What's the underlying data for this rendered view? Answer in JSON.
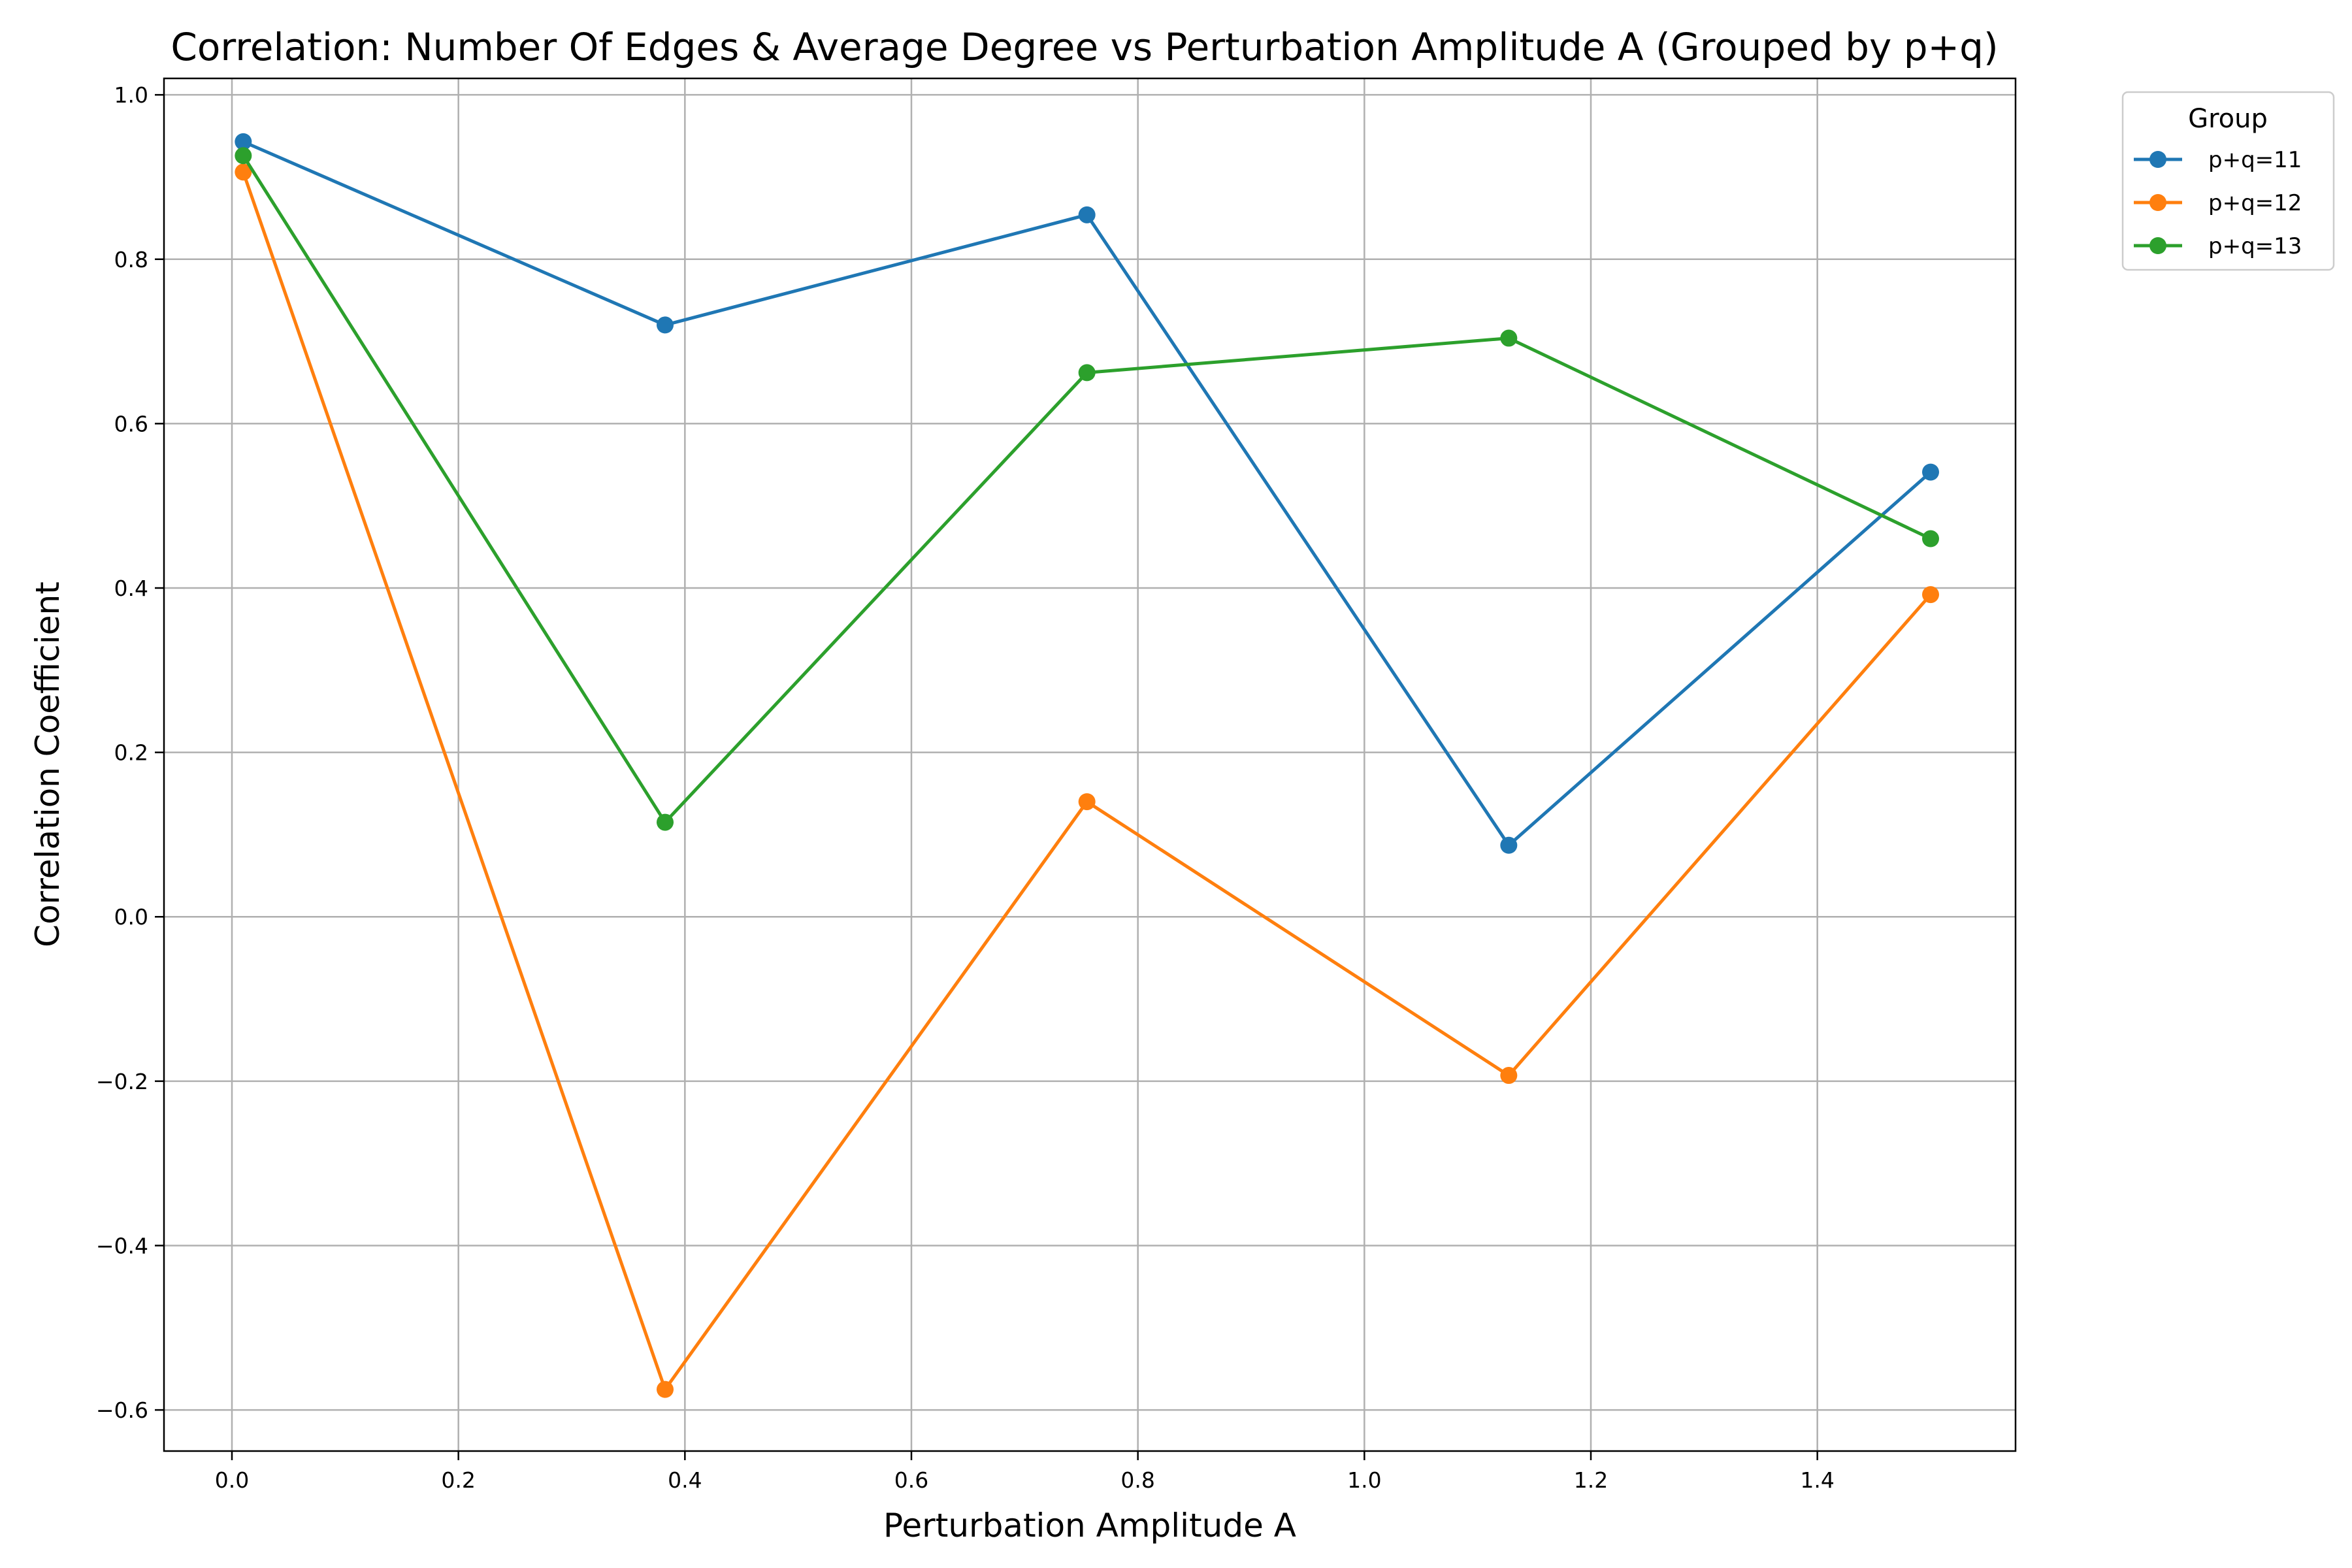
{
  "chart_data": {
    "type": "line",
    "title": "Correlation: Number Of Edges & Average Degree vs Perturbation Amplitude A (Grouped by p+q)",
    "xlabel": "Perturbation Amplitude A",
    "ylabel": "Correlation Coefficient",
    "xlim": [
      -0.06,
      1.575
    ],
    "ylim": [
      -0.65,
      1.02
    ],
    "xticks": [
      0.0,
      0.2,
      0.4,
      0.6,
      0.8,
      1.0,
      1.2,
      1.4
    ],
    "xtick_labels": [
      "0.0",
      "0.2",
      "0.4",
      "0.6",
      "0.8",
      "1.0",
      "1.2",
      "1.4"
    ],
    "yticks": [
      -0.6,
      -0.4,
      -0.2,
      0.0,
      0.2,
      0.4,
      0.6,
      0.8,
      1.0
    ],
    "ytick_labels": [
      "−0.6",
      "−0.4",
      "−0.2",
      "0.0",
      "0.2",
      "0.4",
      "0.6",
      "0.8",
      "1.0"
    ],
    "grid": true,
    "legend": {
      "title": "Group",
      "placement": "outside-top-right"
    },
    "x": [
      0.01,
      0.3825,
      0.755,
      1.1275,
      1.5
    ],
    "series": [
      {
        "name": "p+q=11",
        "color": "#1f77b4",
        "values": [
          0.943,
          0.72,
          0.854,
          0.087,
          0.541
        ]
      },
      {
        "name": "p+q=12",
        "color": "#ff7f0e",
        "values": [
          0.906,
          -0.575,
          0.14,
          -0.193,
          0.392
        ]
      },
      {
        "name": "p+q=13",
        "color": "#2ca02c",
        "values": [
          0.926,
          0.115,
          0.662,
          0.704,
          0.46
        ]
      }
    ]
  }
}
